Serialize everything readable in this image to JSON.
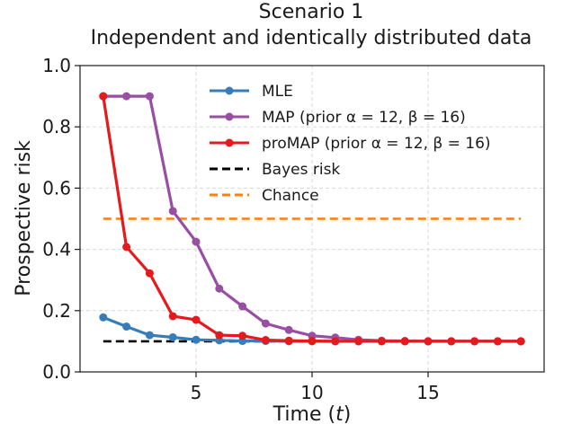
{
  "chart_data": {
    "type": "line",
    "title": "Scenario 1",
    "subtitle": "Independent and identically distributed data",
    "xlabel": "Time (t)",
    "ylabel": "Prospective risk",
    "xlim": [
      0,
      20
    ],
    "ylim": [
      0.0,
      1.0
    ],
    "xticks": [
      5,
      10,
      15
    ],
    "xtick_labels": [
      "5",
      "10",
      "15"
    ],
    "yticks": [
      0.0,
      0.2,
      0.4,
      0.6,
      0.8,
      1.0
    ],
    "ytick_labels": [
      "0.0",
      "0.2",
      "0.4",
      "0.6",
      "0.8",
      "1.0"
    ],
    "grid": true,
    "legend_position": "top-right",
    "x": [
      1,
      2,
      3,
      4,
      5,
      6,
      7,
      8,
      9,
      10,
      11,
      12,
      13,
      14,
      15,
      16,
      17,
      18,
      19
    ],
    "series": [
      {
        "name": "MLE",
        "color": "#377eb8",
        "style": "solid",
        "markers": true,
        "values": [
          0.178,
          0.148,
          0.12,
          0.113,
          0.105,
          0.103,
          0.101,
          0.101,
          0.1,
          0.1,
          0.1,
          0.1,
          0.1,
          0.1,
          0.1,
          0.1,
          0.1,
          0.1,
          0.1
        ]
      },
      {
        "name": "MAP (prior α = 12, β = 16)",
        "color": "#984ea3",
        "style": "solid",
        "markers": true,
        "values": [
          0.9,
          0.9,
          0.9,
          0.525,
          0.425,
          0.272,
          0.214,
          0.158,
          0.137,
          0.118,
          0.112,
          0.105,
          0.102,
          0.101,
          0.1,
          0.1,
          0.1,
          0.1,
          0.1
        ]
      },
      {
        "name": "proMAP (prior α = 12, β = 16)",
        "color": "#e41a1c",
        "style": "solid",
        "markers": true,
        "values": [
          0.9,
          0.408,
          0.322,
          0.182,
          0.17,
          0.12,
          0.118,
          0.104,
          0.102,
          0.101,
          0.1,
          0.1,
          0.1,
          0.1,
          0.1,
          0.1,
          0.1,
          0.1,
          0.1
        ]
      },
      {
        "name": "Bayes risk",
        "color": "#000000",
        "style": "dashed",
        "markers": false,
        "x_range": [
          1,
          19
        ],
        "constant": 0.1
      },
      {
        "name": "Chance",
        "color": "#ff7f0e",
        "style": "dashed",
        "markers": false,
        "x_range": [
          1,
          19
        ],
        "constant": 0.5
      }
    ]
  }
}
